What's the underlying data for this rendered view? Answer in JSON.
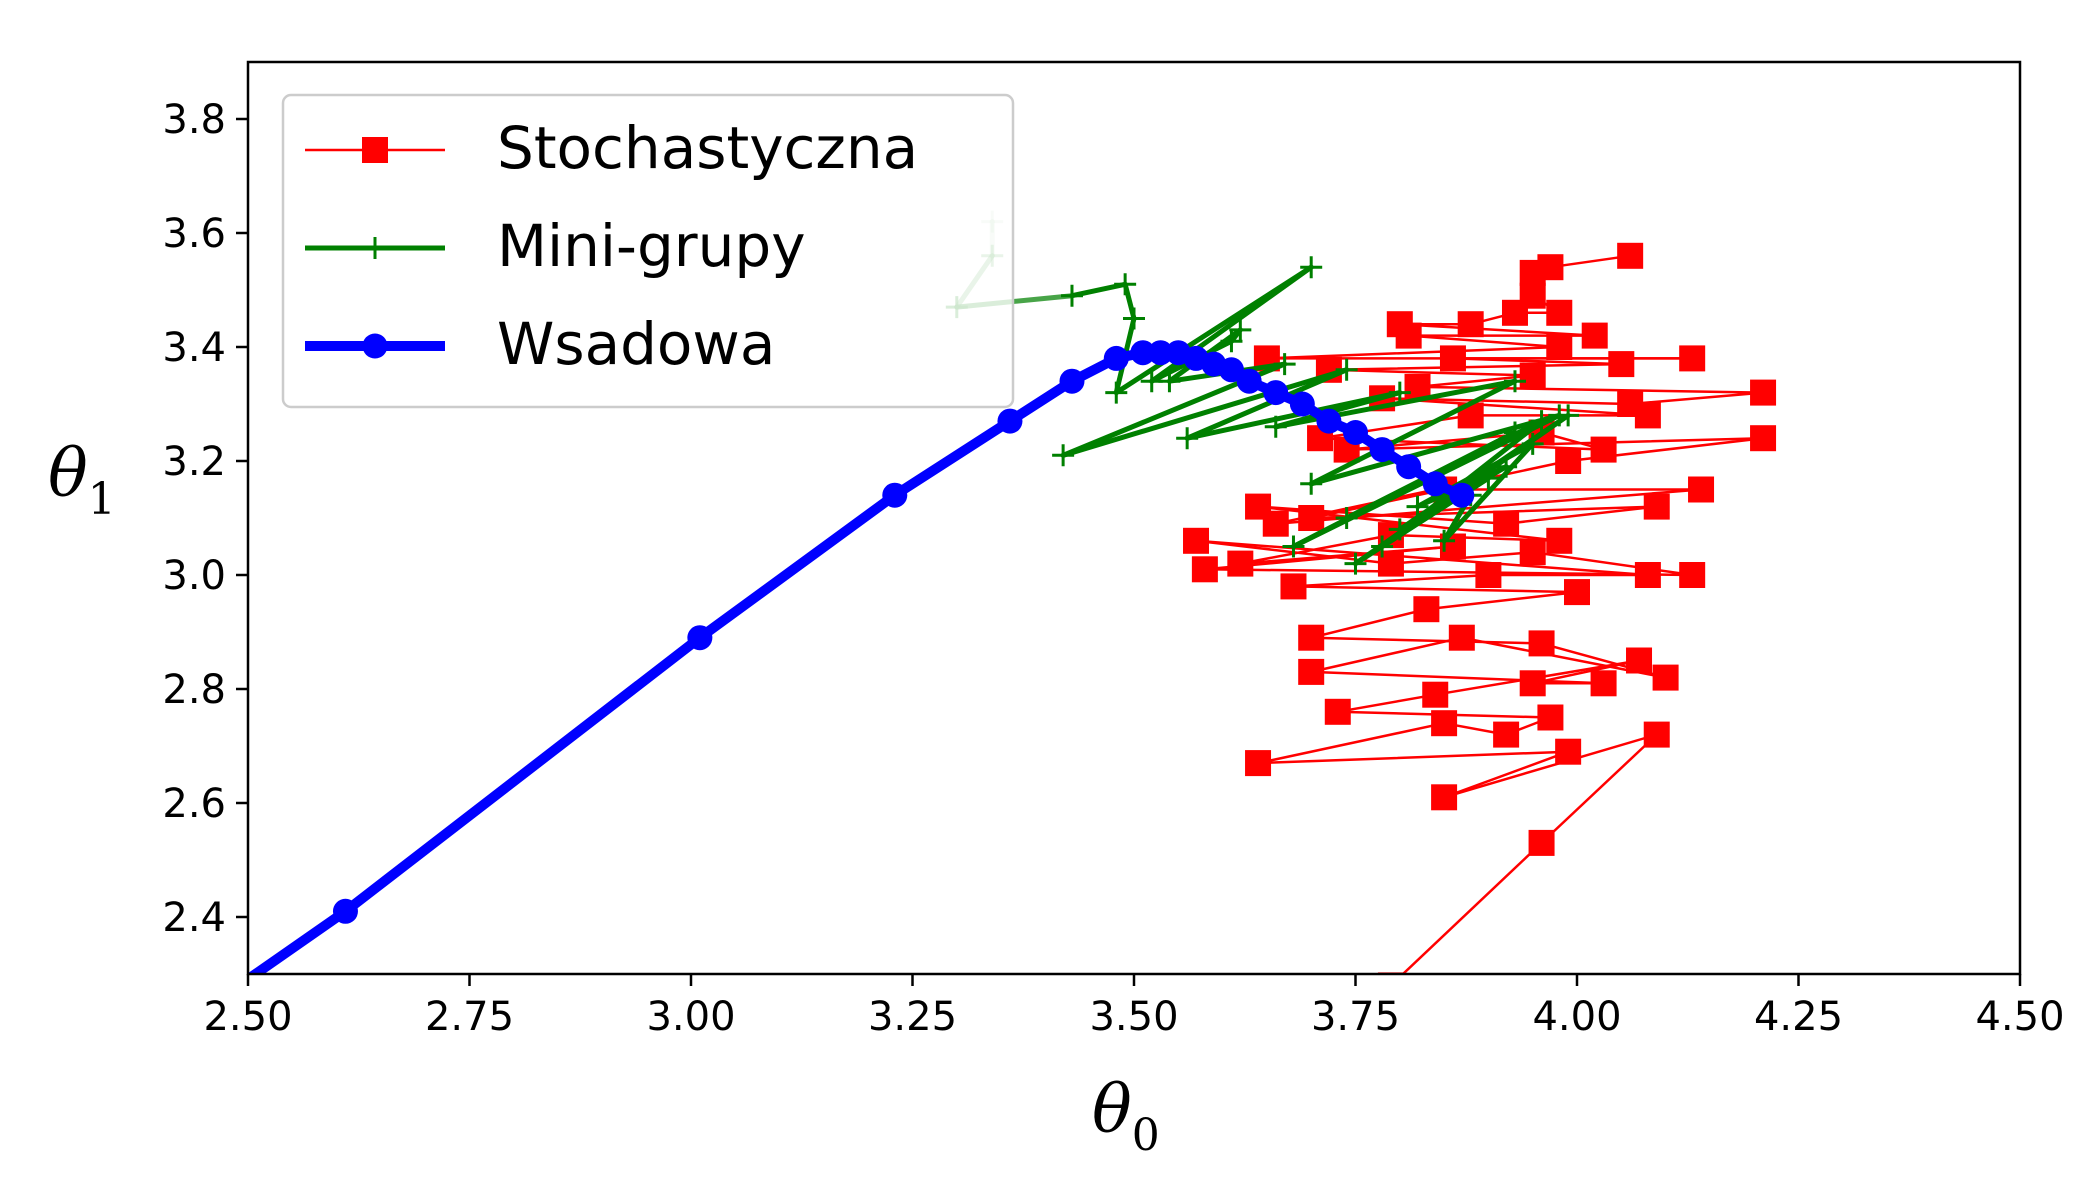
{
  "chart_data": {
    "type": "line",
    "xlabel_main": "θ",
    "xlabel_sub": "0",
    "ylabel_main": "θ",
    "ylabel_sub": "1",
    "xlim": [
      2.5,
      4.5
    ],
    "ylim": [
      2.3,
      3.9
    ],
    "x_ticks": [
      "2.50",
      "2.75",
      "3.00",
      "3.25",
      "3.50",
      "3.75",
      "4.00",
      "4.25",
      "4.50"
    ],
    "y_ticks": [
      "2.4",
      "2.6",
      "2.8",
      "3.0",
      "3.2",
      "3.4",
      "3.6",
      "3.8"
    ],
    "grid": false,
    "legend_position": "top-left",
    "series": [
      {
        "name": "Stochastyczna",
        "color": "#ff0000",
        "marker": "square",
        "line_width": "thin",
        "points": [
          [
            3.79,
            2.28
          ],
          [
            3.96,
            2.53
          ],
          [
            4.09,
            2.72
          ],
          [
            3.85,
            2.61
          ],
          [
            3.99,
            2.69
          ],
          [
            3.64,
            2.67
          ],
          [
            3.85,
            2.74
          ],
          [
            3.92,
            2.72
          ],
          [
            3.97,
            2.75
          ],
          [
            3.73,
            2.76
          ],
          [
            3.84,
            2.79
          ],
          [
            4.07,
            2.85
          ],
          [
            3.95,
            2.81
          ],
          [
            4.03,
            2.81
          ],
          [
            3.7,
            2.83
          ],
          [
            3.87,
            2.89
          ],
          [
            4.1,
            2.82
          ],
          [
            3.96,
            2.88
          ],
          [
            3.7,
            2.89
          ],
          [
            3.83,
            2.94
          ],
          [
            4.0,
            2.97
          ],
          [
            3.68,
            2.98
          ],
          [
            3.9,
            3.0
          ],
          [
            4.08,
            3.0
          ],
          [
            3.57,
            3.06
          ],
          [
            3.79,
            3.02
          ],
          [
            3.95,
            3.04
          ],
          [
            4.13,
            3.0
          ],
          [
            3.58,
            3.01
          ],
          [
            3.86,
            3.05
          ],
          [
            3.62,
            3.02
          ],
          [
            3.79,
            3.07
          ],
          [
            3.98,
            3.06
          ],
          [
            3.64,
            3.12
          ],
          [
            3.92,
            3.09
          ],
          [
            4.09,
            3.12
          ],
          [
            3.7,
            3.1
          ],
          [
            3.85,
            3.15
          ],
          [
            4.14,
            3.15
          ],
          [
            3.66,
            3.09
          ],
          [
            3.99,
            3.2
          ],
          [
            4.21,
            3.24
          ],
          [
            3.74,
            3.22
          ],
          [
            3.96,
            3.25
          ],
          [
            4.03,
            3.22
          ],
          [
            3.71,
            3.24
          ],
          [
            3.88,
            3.28
          ],
          [
            4.08,
            3.28
          ],
          [
            3.78,
            3.31
          ],
          [
            4.06,
            3.3
          ],
          [
            4.21,
            3.32
          ],
          [
            3.82,
            3.33
          ],
          [
            3.95,
            3.35
          ],
          [
            3.72,
            3.36
          ],
          [
            4.05,
            3.37
          ],
          [
            3.86,
            3.38
          ],
          [
            4.13,
            3.38
          ],
          [
            3.65,
            3.38
          ],
          [
            3.98,
            3.4
          ],
          [
            3.81,
            3.42
          ],
          [
            4.02,
            3.42
          ],
          [
            3.8,
            3.44
          ],
          [
            3.88,
            3.44
          ],
          [
            3.93,
            3.46
          ],
          [
            3.98,
            3.46
          ],
          [
            3.95,
            3.49
          ],
          [
            3.95,
            3.53
          ],
          [
            3.97,
            3.54
          ],
          [
            4.06,
            3.56
          ]
        ]
      },
      {
        "name": "Mini-grupy",
        "color": "#008000",
        "marker": "plus",
        "line_width": "medium",
        "points": [
          [
            3.34,
            3.62
          ],
          [
            3.34,
            3.56
          ],
          [
            3.3,
            3.47
          ],
          [
            3.43,
            3.49
          ],
          [
            3.49,
            3.51
          ],
          [
            3.5,
            3.45
          ],
          [
            3.48,
            3.32
          ],
          [
            3.7,
            3.54
          ],
          [
            3.52,
            3.34
          ],
          [
            3.61,
            3.41
          ],
          [
            3.62,
            3.43
          ],
          [
            3.54,
            3.34
          ],
          [
            3.67,
            3.37
          ],
          [
            3.42,
            3.21
          ],
          [
            3.74,
            3.36
          ],
          [
            3.56,
            3.24
          ],
          [
            3.8,
            3.32
          ],
          [
            3.66,
            3.26
          ],
          [
            3.93,
            3.34
          ],
          [
            3.7,
            3.16
          ],
          [
            3.98,
            3.28
          ],
          [
            3.68,
            3.05
          ],
          [
            3.93,
            3.25
          ],
          [
            3.74,
            3.1
          ],
          [
            3.96,
            3.27
          ],
          [
            3.78,
            3.05
          ],
          [
            3.9,
            3.17
          ],
          [
            3.75,
            3.02
          ],
          [
            3.99,
            3.28
          ],
          [
            3.8,
            3.08
          ],
          [
            3.92,
            3.19
          ],
          [
            3.82,
            3.12
          ],
          [
            3.95,
            3.23
          ],
          [
            3.85,
            3.06
          ],
          [
            3.88,
            3.14
          ]
        ]
      },
      {
        "name": "Wsadowa",
        "color": "#0000ff",
        "marker": "circle",
        "line_width": "thick",
        "points": [
          [
            2.49,
            2.28
          ],
          [
            2.61,
            2.41
          ],
          [
            3.01,
            2.89
          ],
          [
            3.23,
            3.14
          ],
          [
            3.36,
            3.27
          ],
          [
            3.43,
            3.34
          ],
          [
            3.48,
            3.38
          ],
          [
            3.51,
            3.39
          ],
          [
            3.53,
            3.39
          ],
          [
            3.55,
            3.39
          ],
          [
            3.57,
            3.38
          ],
          [
            3.59,
            3.37
          ],
          [
            3.61,
            3.36
          ],
          [
            3.63,
            3.34
          ],
          [
            3.66,
            3.32
          ],
          [
            3.69,
            3.3
          ],
          [
            3.72,
            3.27
          ],
          [
            3.75,
            3.25
          ],
          [
            3.78,
            3.22
          ],
          [
            3.81,
            3.19
          ],
          [
            3.84,
            3.16
          ],
          [
            3.87,
            3.14
          ]
        ]
      }
    ]
  }
}
